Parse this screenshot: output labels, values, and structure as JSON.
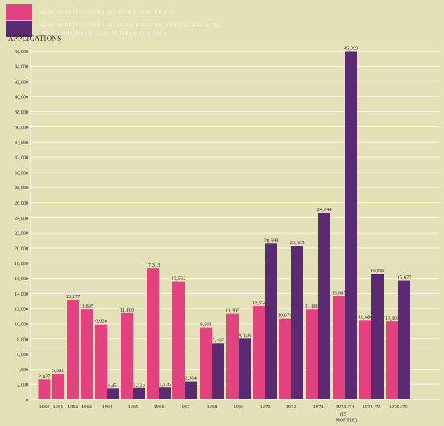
{
  "legend": [
    {
      "label": "NEW APPLICATIONS TO RENT HDB FLATS",
      "color": "#e2437f"
    },
    {
      "label": "NEW APPLICATIONS TO PURCHASE FLATS UNDER HOME OWNERSHIP FOR THE PEOPLE SCHEME",
      "color": "#5a2a72"
    }
  ],
  "chart_data": {
    "type": "bar",
    "ylabel": "APPLICATIONS",
    "ylim": [
      0,
      47000
    ],
    "yticks": [
      0,
      2000,
      4000,
      6000,
      8000,
      10000,
      12000,
      14000,
      16000,
      18000,
      20000,
      22000,
      24000,
      26000,
      28000,
      30000,
      32000,
      34000,
      36000,
      38000,
      40000,
      42000,
      44000,
      46000
    ],
    "ytick_labels": [
      "0",
      "2,000",
      "4,000",
      "6,000",
      "8,000",
      "10,000",
      "12,000",
      "14,000",
      "16,000",
      "18,000",
      "20,000",
      "22,000",
      "24,000",
      "26,000",
      "28,000",
      "30,000",
      "32,000",
      "34,000",
      "36,000",
      "38,000",
      "40,000",
      "42,000",
      "44,000",
      "46,000"
    ],
    "grid": true,
    "legend_position": "top-left",
    "series": [
      {
        "name": "NEW APPLICATIONS TO RENT HDB FLATS",
        "color": "#e2437f",
        "values": [
          2627,
          3381,
          13177,
          11895,
          9928,
          11400,
          17313,
          15562,
          9501,
          11305,
          12324,
          10671,
          11888,
          13685,
          10480,
          10300
        ],
        "labels": [
          "2,627",
          "3,381",
          "13,177",
          "11,895",
          "9,928",
          "11,400",
          "17,313",
          "15,562",
          "9,501",
          "11,305",
          "12,324",
          "10,671",
          "11,888",
          "13,685",
          "10,480",
          "10,300"
        ]
      },
      {
        "name": "NEW APPLICATIONS TO PURCHASE FLATS UNDER HOME OWNERSHIP FOR THE PEOPLE SCHEME",
        "color": "#5a2a72",
        "values": [
          null,
          null,
          null,
          null,
          1451,
          1516,
          1576,
          2384,
          7407,
          8048,
          20598,
          20305,
          24644,
          45999,
          16588,
          15677
        ],
        "labels": [
          null,
          null,
          null,
          null,
          "1,451",
          "1,516",
          "1,576",
          "2,384",
          "7,407",
          "8,048",
          "20,598",
          "20,305",
          "24,644",
          "45,999",
          "16,588",
          "15,677"
        ]
      }
    ],
    "categories": [
      "1960",
      "1961",
      "1962",
      "1963",
      "1964",
      "1965",
      "1966",
      "1967",
      "1968",
      "1969",
      "1970",
      "1971",
      "1972",
      "1973 /74",
      "1974 /75",
      "1975 /76"
    ],
    "category_notes": {
      "13": "(15 MONTHS)"
    }
  }
}
